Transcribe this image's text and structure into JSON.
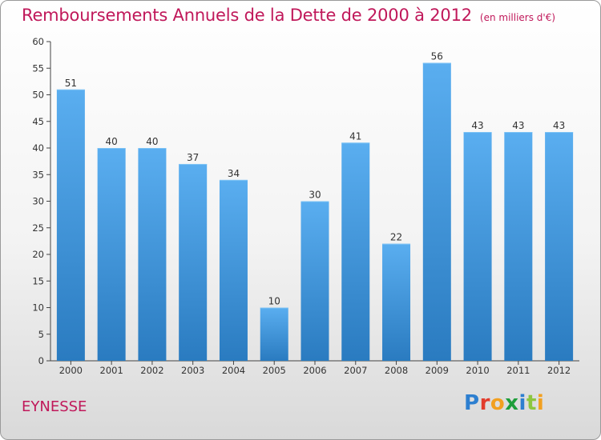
{
  "header": {
    "title": "Remboursements Annuels de la Dette de 2000 à 2012",
    "unit": "(en milliers d'€)"
  },
  "footer": {
    "city": "EYNESSE",
    "logo_text": "Proxiti",
    "logo_colors": [
      "#2d7fd0",
      "#e23c2c",
      "#f2a020",
      "#1e9e3a",
      "#2d7fd0",
      "#8cc63f",
      "#f2a020"
    ]
  },
  "chart_data": {
    "type": "bar",
    "title": "Remboursements Annuels de la Dette de 2000 à 2012",
    "xlabel": "",
    "ylabel": "",
    "categories": [
      "2000",
      "2001",
      "2002",
      "2003",
      "2004",
      "2005",
      "2006",
      "2007",
      "2008",
      "2009",
      "2010",
      "2011",
      "2012"
    ],
    "values": [
      51,
      40,
      40,
      37,
      34,
      10,
      30,
      41,
      22,
      56,
      43,
      43,
      43
    ],
    "ylim": [
      0,
      60
    ],
    "yticks": [
      0,
      5,
      10,
      15,
      20,
      25,
      30,
      35,
      40,
      45,
      50,
      55,
      60
    ],
    "grid": false,
    "bar_color_top": "#5aaef0",
    "bar_color_bottom": "#2a7bc0"
  }
}
